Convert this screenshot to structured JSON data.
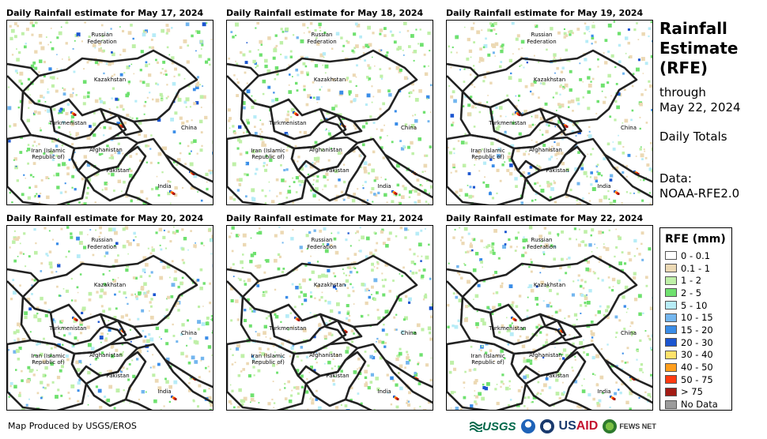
{
  "panels": [
    {
      "title": "Daily Rainfall estimate for May 17, 2024"
    },
    {
      "title": "Daily Rainfall estimate for May 18, 2024"
    },
    {
      "title": "Daily Rainfall estimate for May 19, 2024"
    },
    {
      "title": "Daily Rainfall estimate for May 20, 2024"
    },
    {
      "title": "Daily Rainfall estimate for May 21, 2024"
    },
    {
      "title": "Daily Rainfall estimate for May 22, 2024"
    }
  ],
  "map_labels": {
    "russia_line1": "Russian",
    "russia_line2": "Federation",
    "kazakhstan": "Kazakhstan",
    "turkmenistan": "Turkmenistan",
    "china": "China",
    "iran_line1": "Iran  (Islamic",
    "iran_line2": "Republic of)",
    "afghanistan": "Afghanistan",
    "pakistan": "Pakistan",
    "india": "India"
  },
  "sidebar": {
    "title_line1": "Rainfall",
    "title_line2": "Estimate",
    "title_line3": "(RFE)",
    "through": "through",
    "date": "May 22, 2024",
    "period": "Daily Totals",
    "data_label": "Data:",
    "data_source": "NOAA-RFE2.0"
  },
  "legend": {
    "title": "RFE (mm)",
    "items": [
      {
        "label": "0 - 0.1",
        "color": "#ffffff"
      },
      {
        "label": "0.1 - 1",
        "color": "#ecd9b4"
      },
      {
        "label": "1 - 2",
        "color": "#bff0a8"
      },
      {
        "label": "2 - 5",
        "color": "#6fe16f"
      },
      {
        "label": "5 - 10",
        "color": "#b7ecf7"
      },
      {
        "label": "10 - 15",
        "color": "#73b6ef"
      },
      {
        "label": "15 - 20",
        "color": "#3a8de8"
      },
      {
        "label": "20 - 30",
        "color": "#1b55d0"
      },
      {
        "label": "30 - 40",
        "color": "#ffe26b"
      },
      {
        "label": "40 - 50",
        "color": "#ff9e1c"
      },
      {
        "label": "50 - 75",
        "color": "#ff3a10"
      },
      {
        "label": "> 75",
        "color": "#a31b14"
      },
      {
        "label": "No Data",
        "color": "#9b9b9b"
      }
    ]
  },
  "footer": {
    "credit": "Map Produced by USGS/EROS",
    "logo_usgs": "USGS",
    "logo_usaid_us": "US",
    "logo_usaid_aid": "AID",
    "logo_fews": "FEWS NET"
  }
}
